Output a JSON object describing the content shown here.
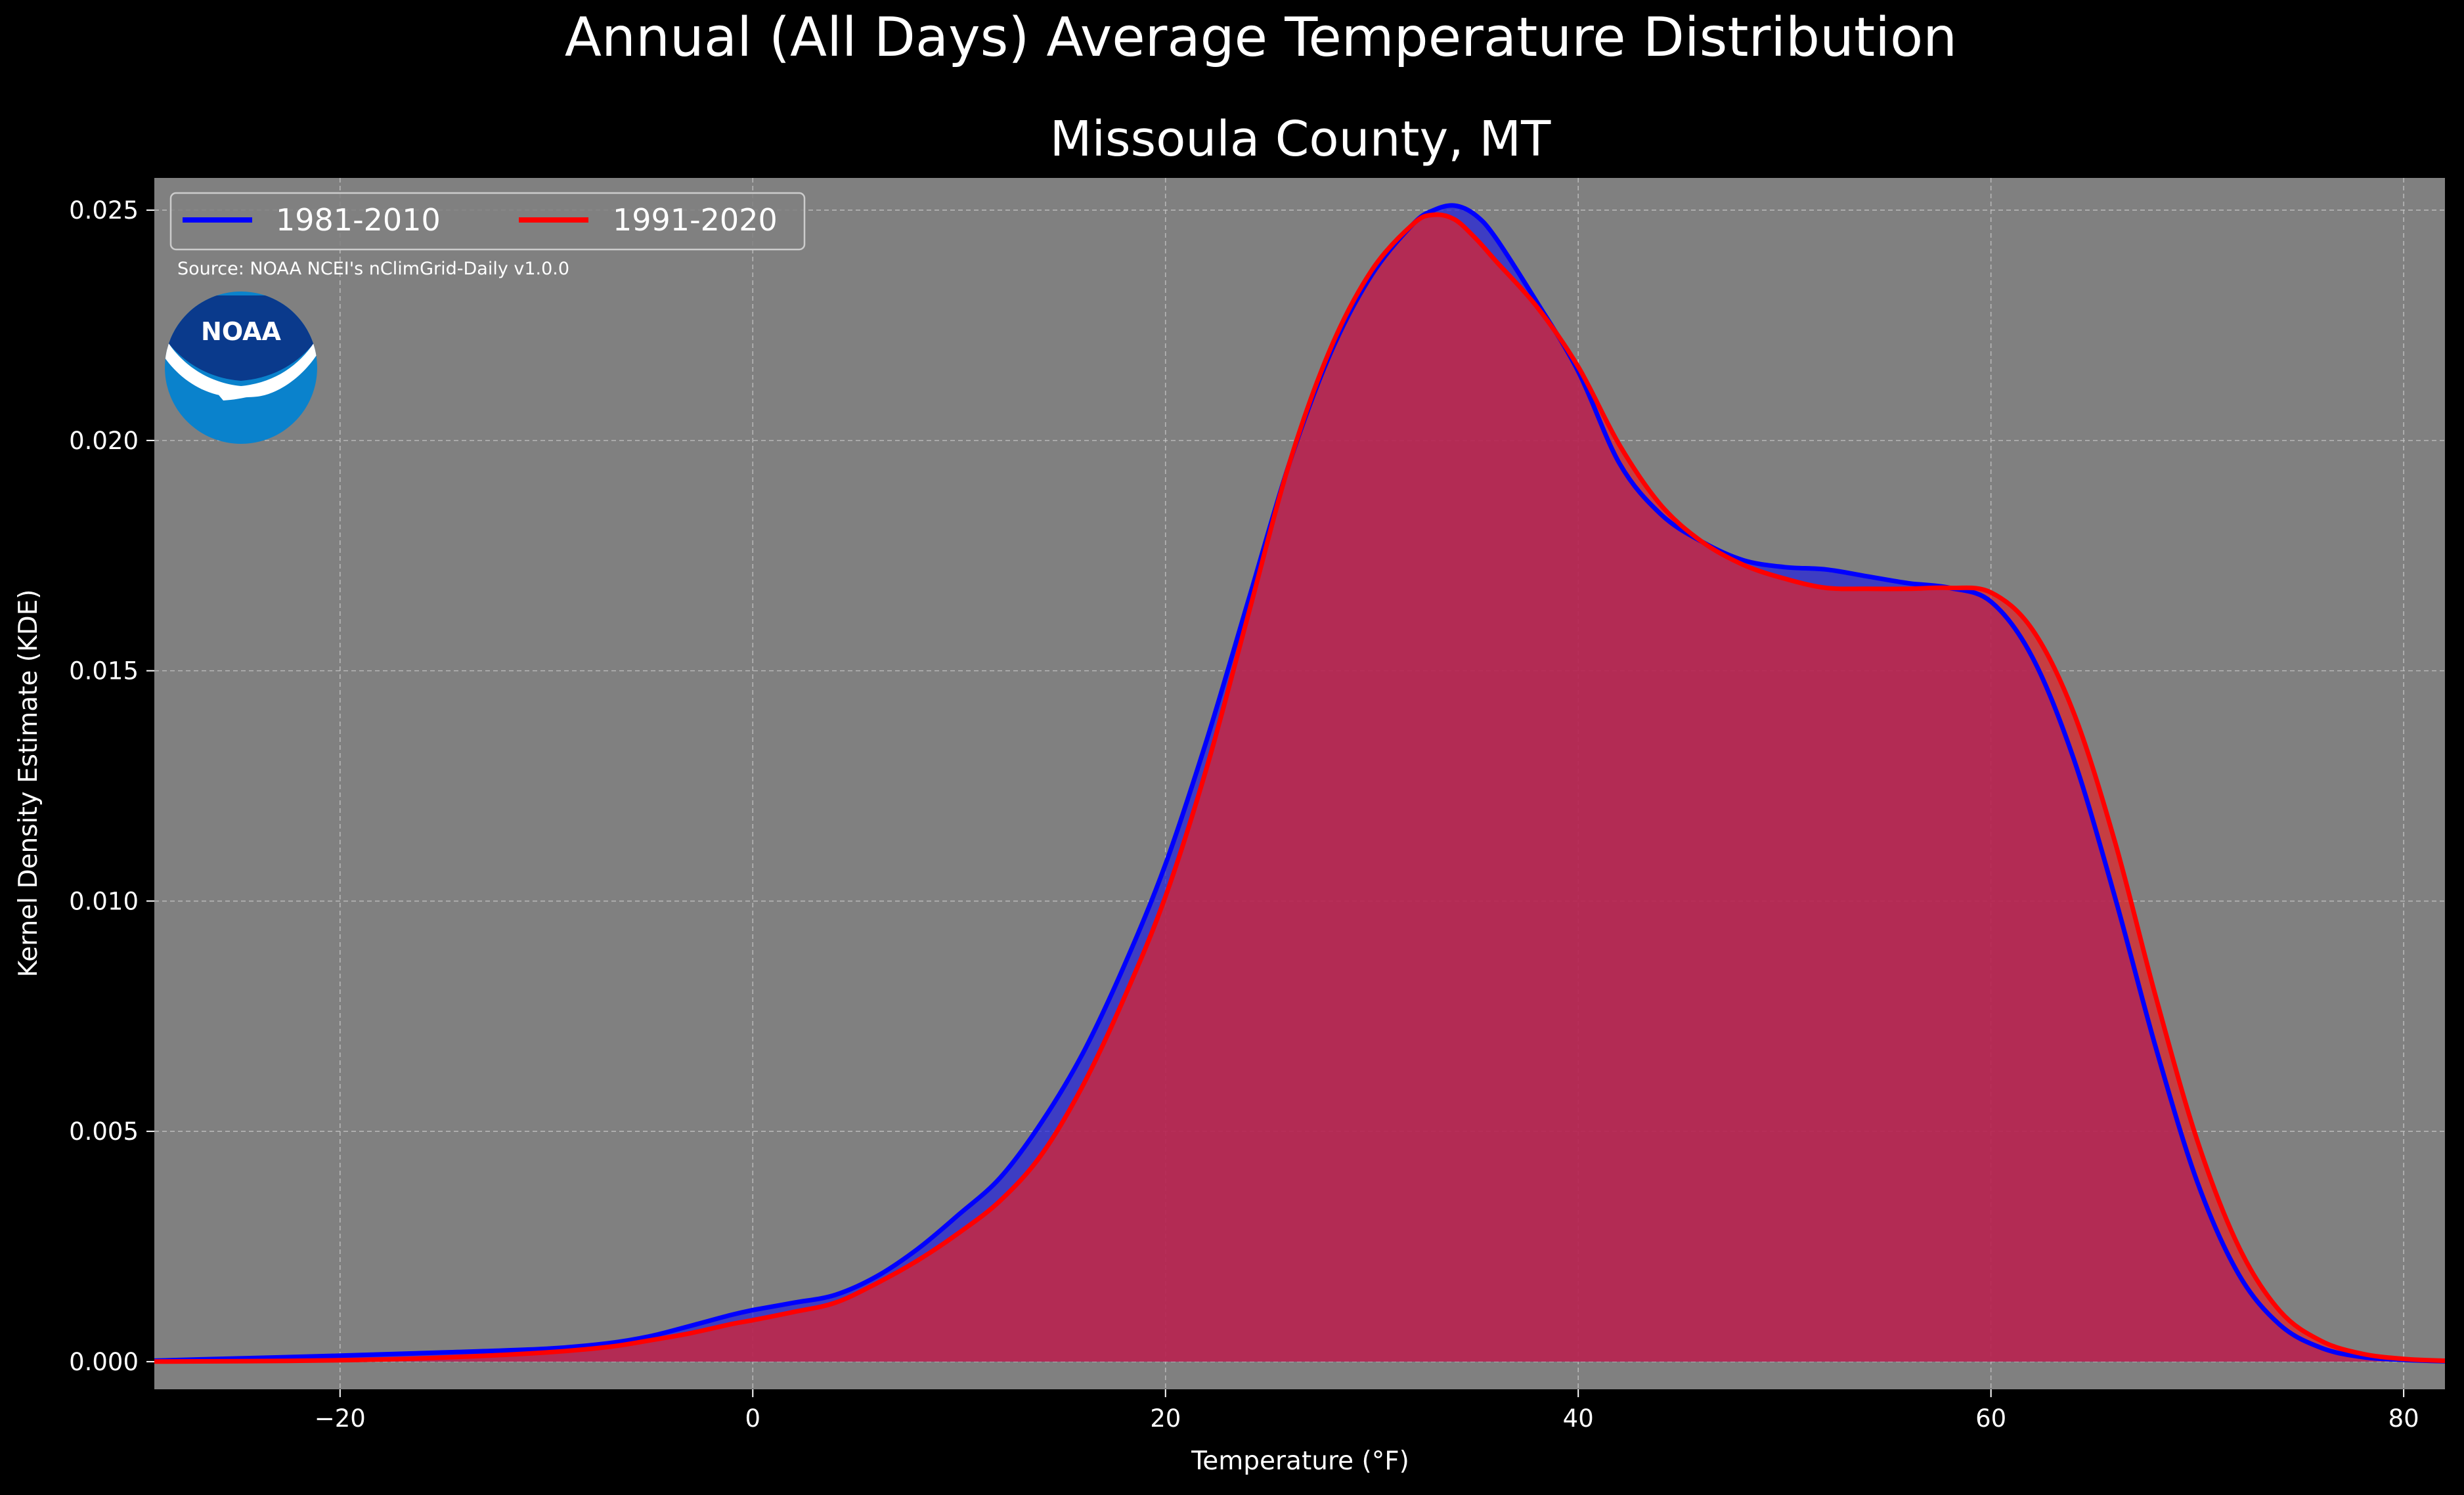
{
  "figure": {
    "suptitle": "Annual (All Days) Average Temperature Distribution",
    "source_note": "Source: NOAA NCEI's nClimGrid-Daily v1.0.0",
    "logo": {
      "text": "NOAA",
      "icon": "noaa-logo-icon",
      "colors": {
        "dark": "#0a3a8c",
        "light": "#0a82cc",
        "bird": "#ffffff"
      }
    }
  },
  "colors": {
    "figure_bg": "#000000",
    "axes_bg": "#808080",
    "grid": "#c8c8c8",
    "text": "#ffffff"
  },
  "chart_data": {
    "type": "area",
    "title": "Missoula County, MT",
    "xlabel": "Temperature (°F)",
    "ylabel": "Kernel Density Estimate (KDE)",
    "xlim": [
      -29,
      82
    ],
    "ylim": [
      -0.0006,
      0.0257
    ],
    "xticks": [
      -20,
      0,
      20,
      40,
      60,
      80
    ],
    "xtick_labels": [
      "−20",
      "0",
      "20",
      "40",
      "60",
      "80"
    ],
    "yticks": [
      0.0,
      0.005,
      0.01,
      0.015,
      0.02,
      0.025
    ],
    "ytick_labels": [
      "0.000",
      "0.005",
      "0.010",
      "0.015",
      "0.020",
      "0.025"
    ],
    "grid": true,
    "legend": {
      "placement": "top-left",
      "columns": 2
    },
    "series": [
      {
        "name": "1981-2010",
        "line_color": "#0000ff",
        "fill_color": "#2222dd",
        "x": [
          -30,
          -25,
          -20,
          -15,
          -10,
          -7,
          -5,
          -3,
          -1,
          0,
          2,
          4,
          6,
          8,
          10,
          12,
          14,
          16,
          18,
          20,
          22,
          24,
          26,
          28,
          30,
          32,
          33,
          34,
          35,
          36,
          38,
          40,
          42,
          44,
          46,
          48,
          50,
          52,
          54,
          56,
          58,
          60,
          62,
          64,
          66,
          68,
          70,
          72,
          74,
          76,
          78,
          80,
          82,
          84
        ],
        "y": [
          1e-05,
          7e-05,
          0.00013,
          0.0002,
          0.00028,
          0.0004,
          0.00055,
          0.00078,
          0.00102,
          0.00112,
          0.00128,
          0.00145,
          0.00185,
          0.00245,
          0.0032,
          0.004,
          0.0052,
          0.0067,
          0.0086,
          0.0108,
          0.0135,
          0.0165,
          0.0195,
          0.0219,
          0.0236,
          0.0247,
          0.025,
          0.0251,
          0.0249,
          0.0244,
          0.023,
          0.0215,
          0.0195,
          0.0184,
          0.0178,
          0.0174,
          0.01725,
          0.0172,
          0.01705,
          0.0169,
          0.0168,
          0.0165,
          0.0153,
          0.0131,
          0.0101,
          0.0068,
          0.0039,
          0.0019,
          0.0008,
          0.0003,
          0.0001,
          4e-05,
          1e-05,
          0.0
        ]
      },
      {
        "name": "1991-2020",
        "line_color": "#ff0000",
        "fill_color": "#e0242a",
        "x": [
          -30,
          -25,
          -20,
          -15,
          -10,
          -7,
          -5,
          -3,
          -1,
          0,
          2,
          4,
          6,
          8,
          10,
          12,
          14,
          16,
          18,
          20,
          22,
          24,
          26,
          28,
          30,
          32,
          33,
          34,
          35,
          36,
          38,
          40,
          42,
          44,
          46,
          48,
          50,
          52,
          54,
          56,
          58,
          60,
          62,
          64,
          66,
          68,
          70,
          72,
          74,
          76,
          78,
          80,
          82,
          84
        ],
        "y": [
          0.0,
          1e-05,
          3e-05,
          9e-05,
          0.0002,
          0.00032,
          0.00046,
          0.00062,
          0.00082,
          0.0009,
          0.00108,
          0.00128,
          0.0017,
          0.0022,
          0.0028,
          0.0035,
          0.0045,
          0.006,
          0.0079,
          0.0101,
          0.0129,
          0.0162,
          0.0195,
          0.022,
          0.0237,
          0.0247,
          0.0249,
          0.0248,
          0.0244,
          0.0239,
          0.0229,
          0.0216,
          0.0199,
          0.0186,
          0.0178,
          0.0173,
          0.017,
          0.0168,
          0.01678,
          0.01678,
          0.0168,
          0.0167,
          0.0159,
          0.0141,
          0.0113,
          0.0079,
          0.0048,
          0.0025,
          0.0011,
          0.00045,
          0.00017,
          6e-05,
          2e-05,
          0.0
        ]
      }
    ]
  }
}
